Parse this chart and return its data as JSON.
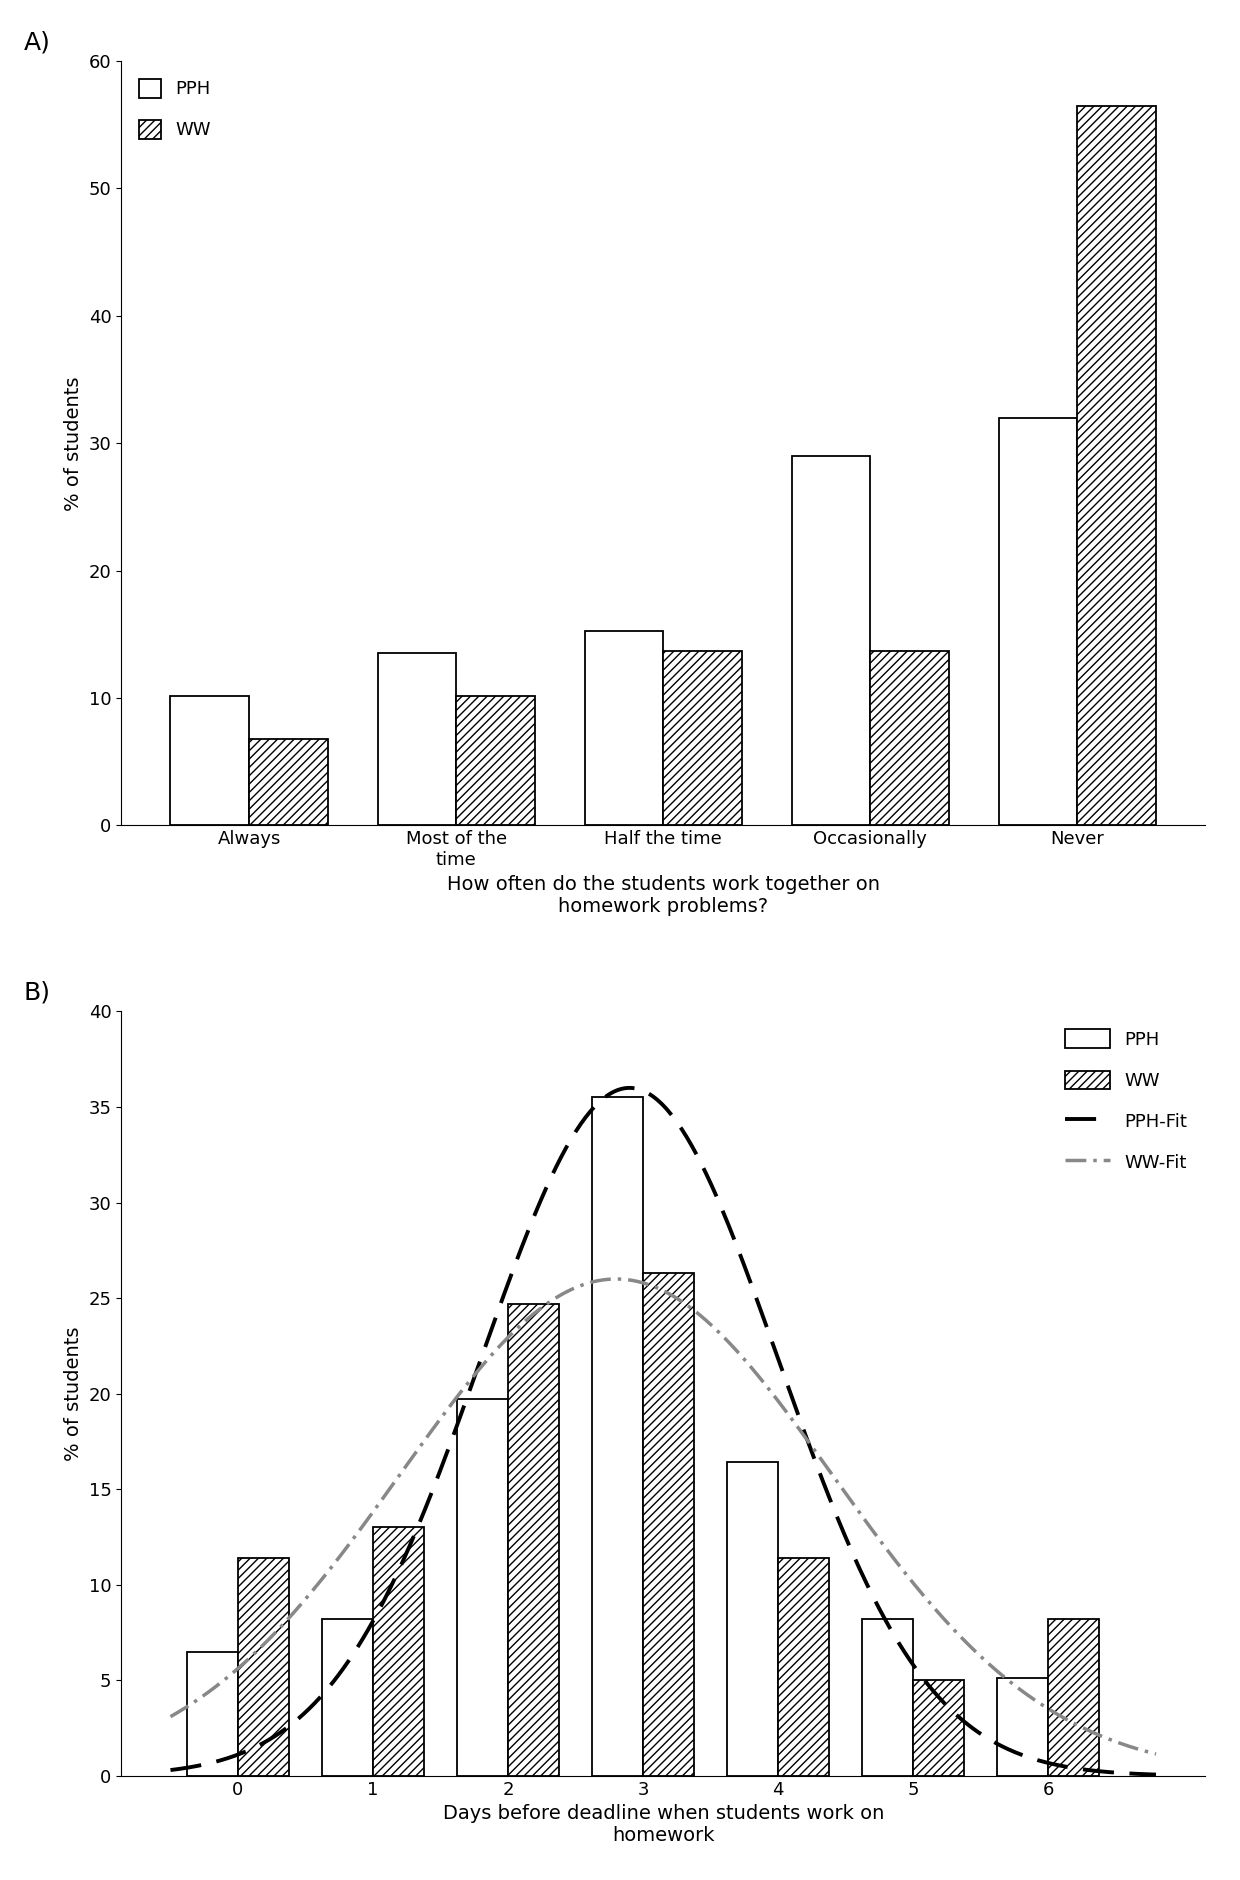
{
  "panel_A": {
    "categories": [
      "Always",
      "Most of the\ntime",
      "Half the time",
      "Occasionally",
      "Never"
    ],
    "pph_values": [
      10.2,
      13.5,
      15.3,
      29.0,
      32.0
    ],
    "ww_values": [
      6.8,
      10.2,
      13.7,
      13.7,
      56.5
    ],
    "ylabel": "% of students",
    "xlabel": "How often do the students work together on\nhomework problems?",
    "ylim": [
      0,
      60
    ],
    "yticks": [
      0,
      10,
      20,
      30,
      40,
      50,
      60
    ],
    "label": "A)"
  },
  "panel_B": {
    "categories": [
      0,
      1,
      2,
      3,
      4,
      5,
      6
    ],
    "pph_values": [
      6.5,
      8.2,
      19.7,
      35.5,
      16.4,
      8.2,
      5.1
    ],
    "ww_values": [
      11.4,
      13.0,
      24.7,
      26.3,
      11.4,
      5.0,
      8.2
    ],
    "pph_fit_mu": 2.9,
    "pph_fit_sigma": 1.1,
    "pph_fit_peak": 36.0,
    "ww_fit_mu": 2.8,
    "ww_fit_sigma": 1.6,
    "ww_fit_peak": 26.0,
    "ylabel": "% of students",
    "xlabel": "Days before deadline when students work on\nhomework",
    "ylim": [
      0,
      40
    ],
    "yticks": [
      0,
      5,
      10,
      15,
      20,
      25,
      30,
      35,
      40
    ],
    "label": "B)"
  },
  "pph_color": "#ffffff",
  "pph_edgecolor": "#000000",
  "ww_color": "#ffffff",
  "ww_edgecolor": "#000000",
  "hatch_pattern": "////",
  "bar_width": 0.38,
  "fontsize_tick": 13,
  "fontsize_axis": 14,
  "fontsize_legend": 13,
  "fontsize_panel": 18
}
